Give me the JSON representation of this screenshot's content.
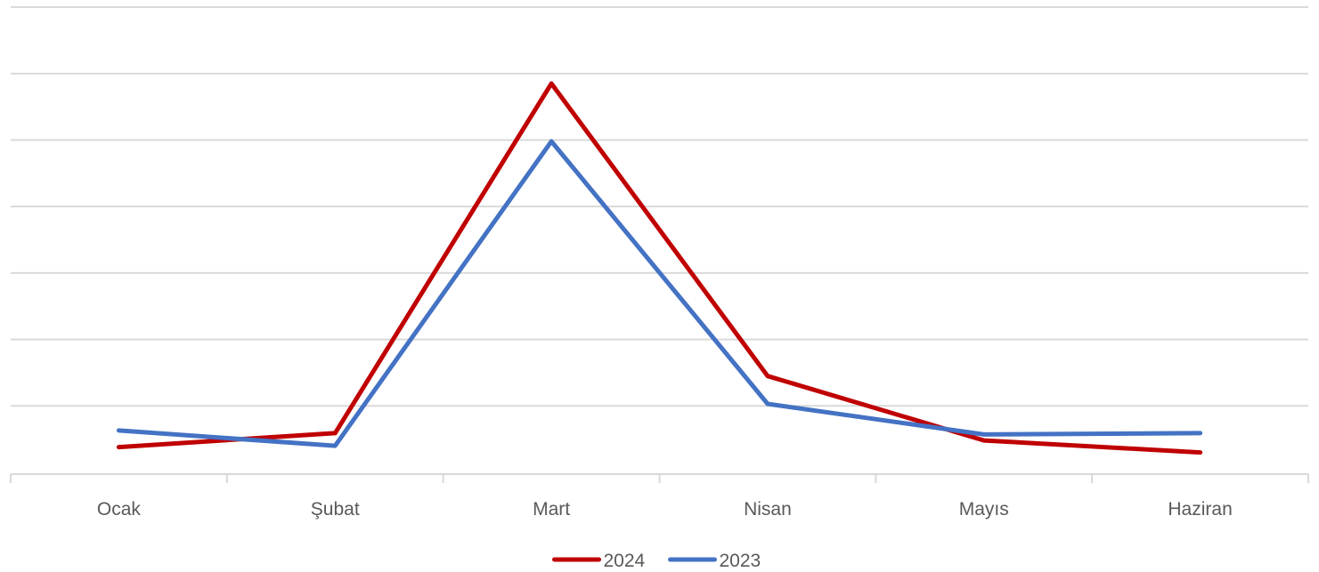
{
  "chart_data": {
    "type": "line",
    "title": "",
    "xlabel": "",
    "ylabel": "",
    "categories": [
      "Ocak",
      "Şubat",
      "Mart",
      "Nisan",
      "Mayıs",
      "Haziran"
    ],
    "ylim": [
      0,
      7
    ],
    "grid": true,
    "legend_position": "bottom",
    "series": [
      {
        "name": "2024",
        "color": "#c00000",
        "values": [
          0.38,
          0.59,
          5.85,
          1.45,
          0.48,
          0.3
        ]
      },
      {
        "name": "2023",
        "color": "#4472c4",
        "values": [
          0.63,
          0.4,
          4.98,
          1.03,
          0.57,
          0.59
        ]
      }
    ]
  }
}
